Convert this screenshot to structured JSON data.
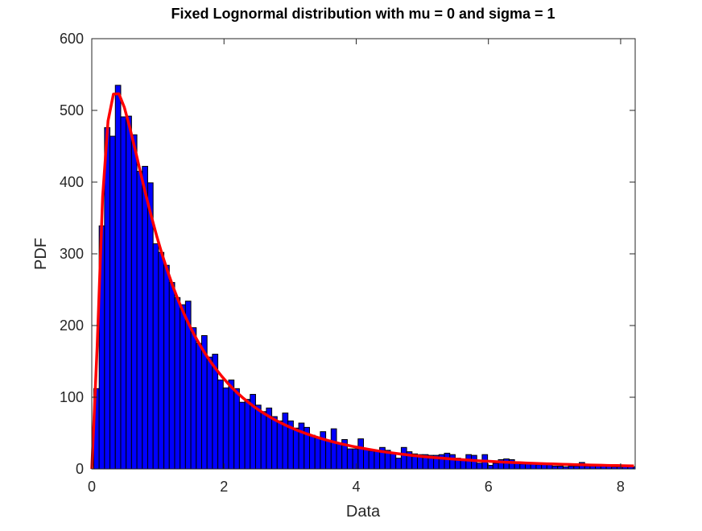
{
  "chart_data": {
    "type": "bar",
    "title": "Fixed Lognormal distribution with mu = 0 and sigma = 1",
    "xlabel": "Data",
    "ylabel": "PDF",
    "xlim": [
      0,
      8.22
    ],
    "ylim": [
      0,
      600
    ],
    "xticks": [
      0,
      2,
      4,
      6,
      8
    ],
    "yticks": [
      0,
      100,
      200,
      300,
      400,
      500,
      600
    ],
    "grid": false,
    "histogram": {
      "bin_start": 0.03,
      "bin_width": 0.0816,
      "counts": [
        112,
        339,
        476,
        464,
        535,
        491,
        492,
        466,
        415,
        422,
        399,
        314,
        302,
        284,
        260,
        239,
        229,
        234,
        197,
        175,
        186,
        156,
        160,
        124,
        113,
        124,
        112,
        93,
        97,
        104,
        89,
        80,
        85,
        73,
        67,
        78,
        67,
        57,
        64,
        58,
        47,
        43,
        52,
        40,
        56,
        36,
        41,
        28,
        28,
        42,
        27,
        25,
        25,
        30,
        26,
        23,
        15,
        30,
        24,
        21,
        20,
        20,
        19,
        19,
        20,
        22,
        20,
        15,
        14,
        20,
        19,
        8,
        20,
        5,
        8,
        13,
        14,
        13,
        8,
        7,
        7,
        7,
        6,
        7,
        6,
        4,
        4,
        3,
        4,
        4,
        9,
        4,
        4,
        4,
        4,
        4,
        3,
        3,
        4,
        3,
        3
      ],
      "color": "#0000ff"
    },
    "fit_curve": {
      "name": "Lognormal PDF (mu = 0, sigma = 1)",
      "mu": 0,
      "sigma": 1,
      "scale": 800,
      "x_step": 0.082,
      "color": "#ff0000"
    }
  }
}
